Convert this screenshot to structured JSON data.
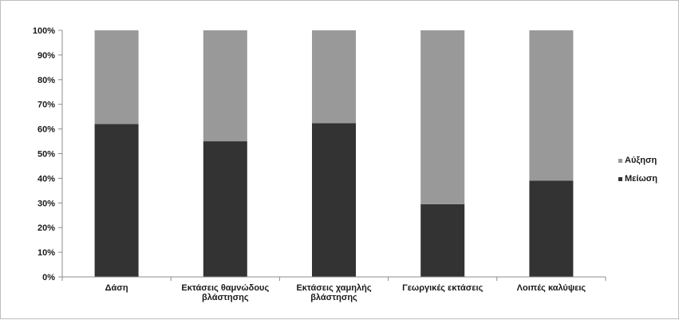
{
  "chart_data": {
    "type": "bar",
    "stacked": true,
    "percent": true,
    "categories": [
      [
        "Δάση"
      ],
      [
        "Εκτάσεις θαμνώδους",
        "βλάστησης"
      ],
      [
        "Εκτάσεις χαμηλής",
        "βλάστησης"
      ],
      [
        "Γεωργικές εκτάσεις"
      ],
      [
        "Λοιπές καλύψεις"
      ]
    ],
    "series": [
      {
        "name": "Μείωση",
        "color": "#333333",
        "values": [
          62,
          55,
          62.3,
          29.5,
          39
        ]
      },
      {
        "name": "Αύξηση",
        "color": "#999999",
        "values": [
          38,
          45,
          37.7,
          70.5,
          61
        ]
      }
    ],
    "legend_order": [
      1,
      0
    ],
    "legend_position": "right",
    "ylim": [
      0,
      100
    ],
    "yticks": [
      "0%",
      "10%",
      "20%",
      "30%",
      "40%",
      "50%",
      "60%",
      "70%",
      "80%",
      "90%",
      "100%"
    ],
    "grid": false
  }
}
